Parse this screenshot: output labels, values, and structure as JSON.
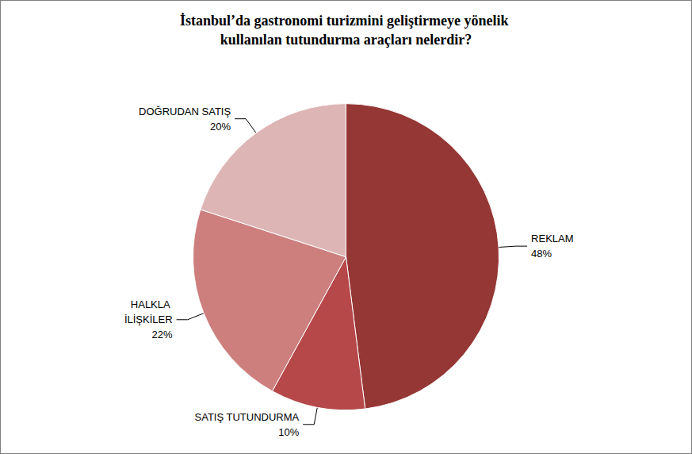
{
  "chart_data": {
    "type": "pie",
    "title": "İstanbul’da gastronomi turizmini geliştirmeye yönelik kullanılan tutundurma araçları nelerdir?",
    "categories": [
      "REKLAM",
      "SATIŞ TUTUNDURMA",
      "HALKLA İLİŞKİLER",
      "DOĞRUDAN SATIŞ"
    ],
    "values": [
      48,
      10,
      22,
      20
    ],
    "value_labels": [
      "48%",
      "10%",
      "22%",
      "20%"
    ],
    "colors": [
      "#953735",
      "#b6484a",
      "#cd7f7e",
      "#deb5b5"
    ],
    "data_labels": true
  }
}
